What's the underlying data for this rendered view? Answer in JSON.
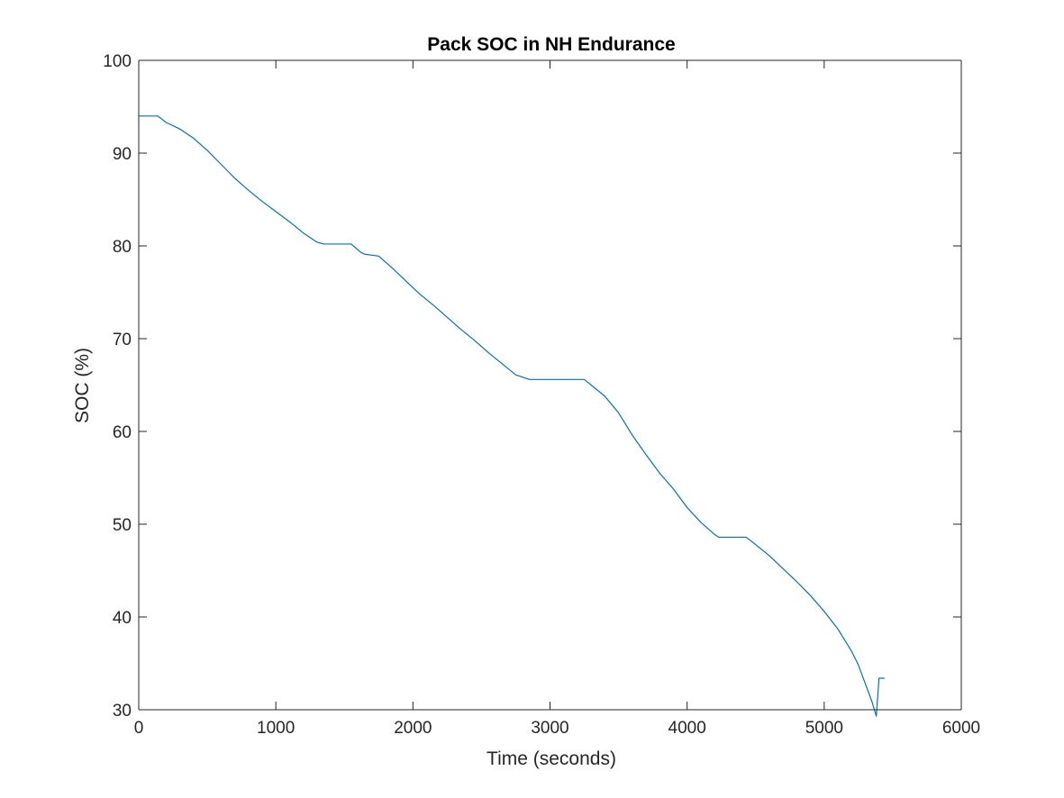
{
  "chart_data": {
    "type": "line",
    "title": "Pack SOC in NH Endurance",
    "xlabel": "Time (seconds)",
    "ylabel": "SOC (%)",
    "xlim": [
      0,
      6000
    ],
    "ylim": [
      30,
      100
    ],
    "xticks": [
      0,
      1000,
      2000,
      3000,
      4000,
      5000,
      6000
    ],
    "yticks": [
      30,
      40,
      50,
      60,
      70,
      80,
      90,
      100
    ],
    "xtick_labels": [
      "0",
      "1000",
      "2000",
      "3000",
      "4000",
      "5000",
      "6000"
    ],
    "ytick_labels": [
      "30",
      "40",
      "50",
      "60",
      "70",
      "80",
      "90",
      "100"
    ],
    "grid": false,
    "series": [
      {
        "color": "#0072BD",
        "x": [
          0,
          140,
          200,
          300,
          400,
          500,
          600,
          700,
          800,
          900,
          1000,
          1100,
          1200,
          1300,
          1350,
          1550,
          1620,
          1650,
          1750,
          1850,
          1950,
          2050,
          2150,
          2250,
          2350,
          2450,
          2550,
          2650,
          2750,
          2850,
          3250,
          3300,
          3400,
          3500,
          3600,
          3700,
          3800,
          3900,
          4000,
          4100,
          4200,
          4230,
          4430,
          4500,
          4600,
          4700,
          4800,
          4900,
          5000,
          5100,
          5200,
          5250,
          5300,
          5350,
          5380,
          5400,
          5440
        ],
        "y": [
          94,
          94,
          93.3,
          92.6,
          91.6,
          90.3,
          88.8,
          87.3,
          86.0,
          84.8,
          83.7,
          82.6,
          81.4,
          80.4,
          80.2,
          80.2,
          79.3,
          79.1,
          78.9,
          77.6,
          76.2,
          74.8,
          73.6,
          72.3,
          71.0,
          69.8,
          68.5,
          67.3,
          66.1,
          65.6,
          65.6,
          65.0,
          63.8,
          62.0,
          59.6,
          57.5,
          55.5,
          53.8,
          51.8,
          50.2,
          48.9,
          48.6,
          48.6,
          47.8,
          46.6,
          45.2,
          43.8,
          42.3,
          40.6,
          38.7,
          36.3,
          34.8,
          32.8,
          30.8,
          29.3,
          33.4,
          33.4
        ]
      }
    ]
  }
}
